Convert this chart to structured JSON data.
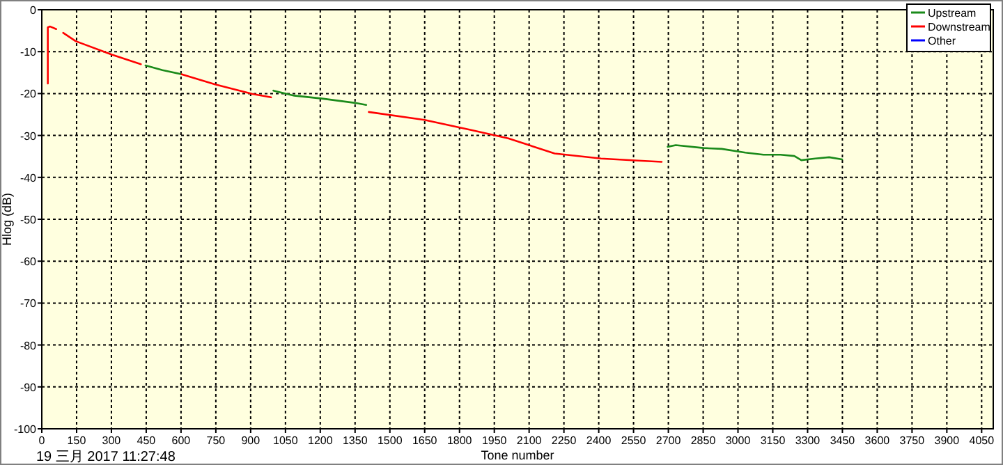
{
  "chart_data": {
    "type": "line",
    "xlabel": "Tone number",
    "ylabel": "Hlog (dB)",
    "annotations": [
      "19 三月 2017 11:27:48"
    ],
    "xlim": [
      0,
      4100
    ],
    "ylim": [
      -100,
      0
    ],
    "xticks": [
      0,
      150,
      300,
      450,
      600,
      750,
      900,
      1050,
      1200,
      1350,
      1500,
      1650,
      1800,
      1950,
      2100,
      2250,
      2400,
      2550,
      2700,
      2850,
      3000,
      3150,
      3300,
      3450,
      3600,
      3750,
      3900,
      4050
    ],
    "yticks": [
      0,
      -10,
      -20,
      -30,
      -40,
      -50,
      -60,
      -70,
      -80,
      -90,
      -100
    ],
    "grid": true,
    "legend": "top right",
    "series": [
      {
        "name": "Upstream",
        "color": "#1a8a1a",
        "x": [
          447,
          520,
          603,
          700,
          998,
          1088,
          1208,
          1358,
          1398,
          2000,
          2697,
          2732,
          2851,
          2930,
          3032,
          3110,
          3183,
          3243,
          3273,
          3333,
          3393,
          3449
        ],
        "values": [
          -13.3,
          -14.4,
          -15.4,
          null,
          -19.3,
          -20.5,
          -21.2,
          -22.3,
          -22.7,
          null,
          -32.7,
          -32.3,
          -33.0,
          -33.2,
          -34.1,
          -34.6,
          -34.6,
          -34.9,
          -35.9,
          -35.5,
          -35.2,
          -35.7
        ]
      },
      {
        "name": "Downstream",
        "color": "#ff0000",
        "x": [
          26,
          26,
          36,
          62,
          77,
          92,
          146,
          302,
          427,
          520,
          603,
          747,
          908,
          988,
          1200,
          1409,
          1649,
          1850,
          2010,
          2210,
          2410,
          2571,
          2671
        ],
        "values": [
          -17.6,
          -4.2,
          -4.0,
          -4.6,
          null,
          -5.5,
          -7.5,
          -10.7,
          -13.0,
          null,
          -15.4,
          -17.8,
          -20.1,
          -20.9,
          null,
          -24.4,
          -26.3,
          -28.7,
          -30.7,
          -34.3,
          -35.5,
          -36.0,
          -36.3
        ]
      },
      {
        "name": "Other",
        "color": "#0000ff"
      }
    ]
  }
}
